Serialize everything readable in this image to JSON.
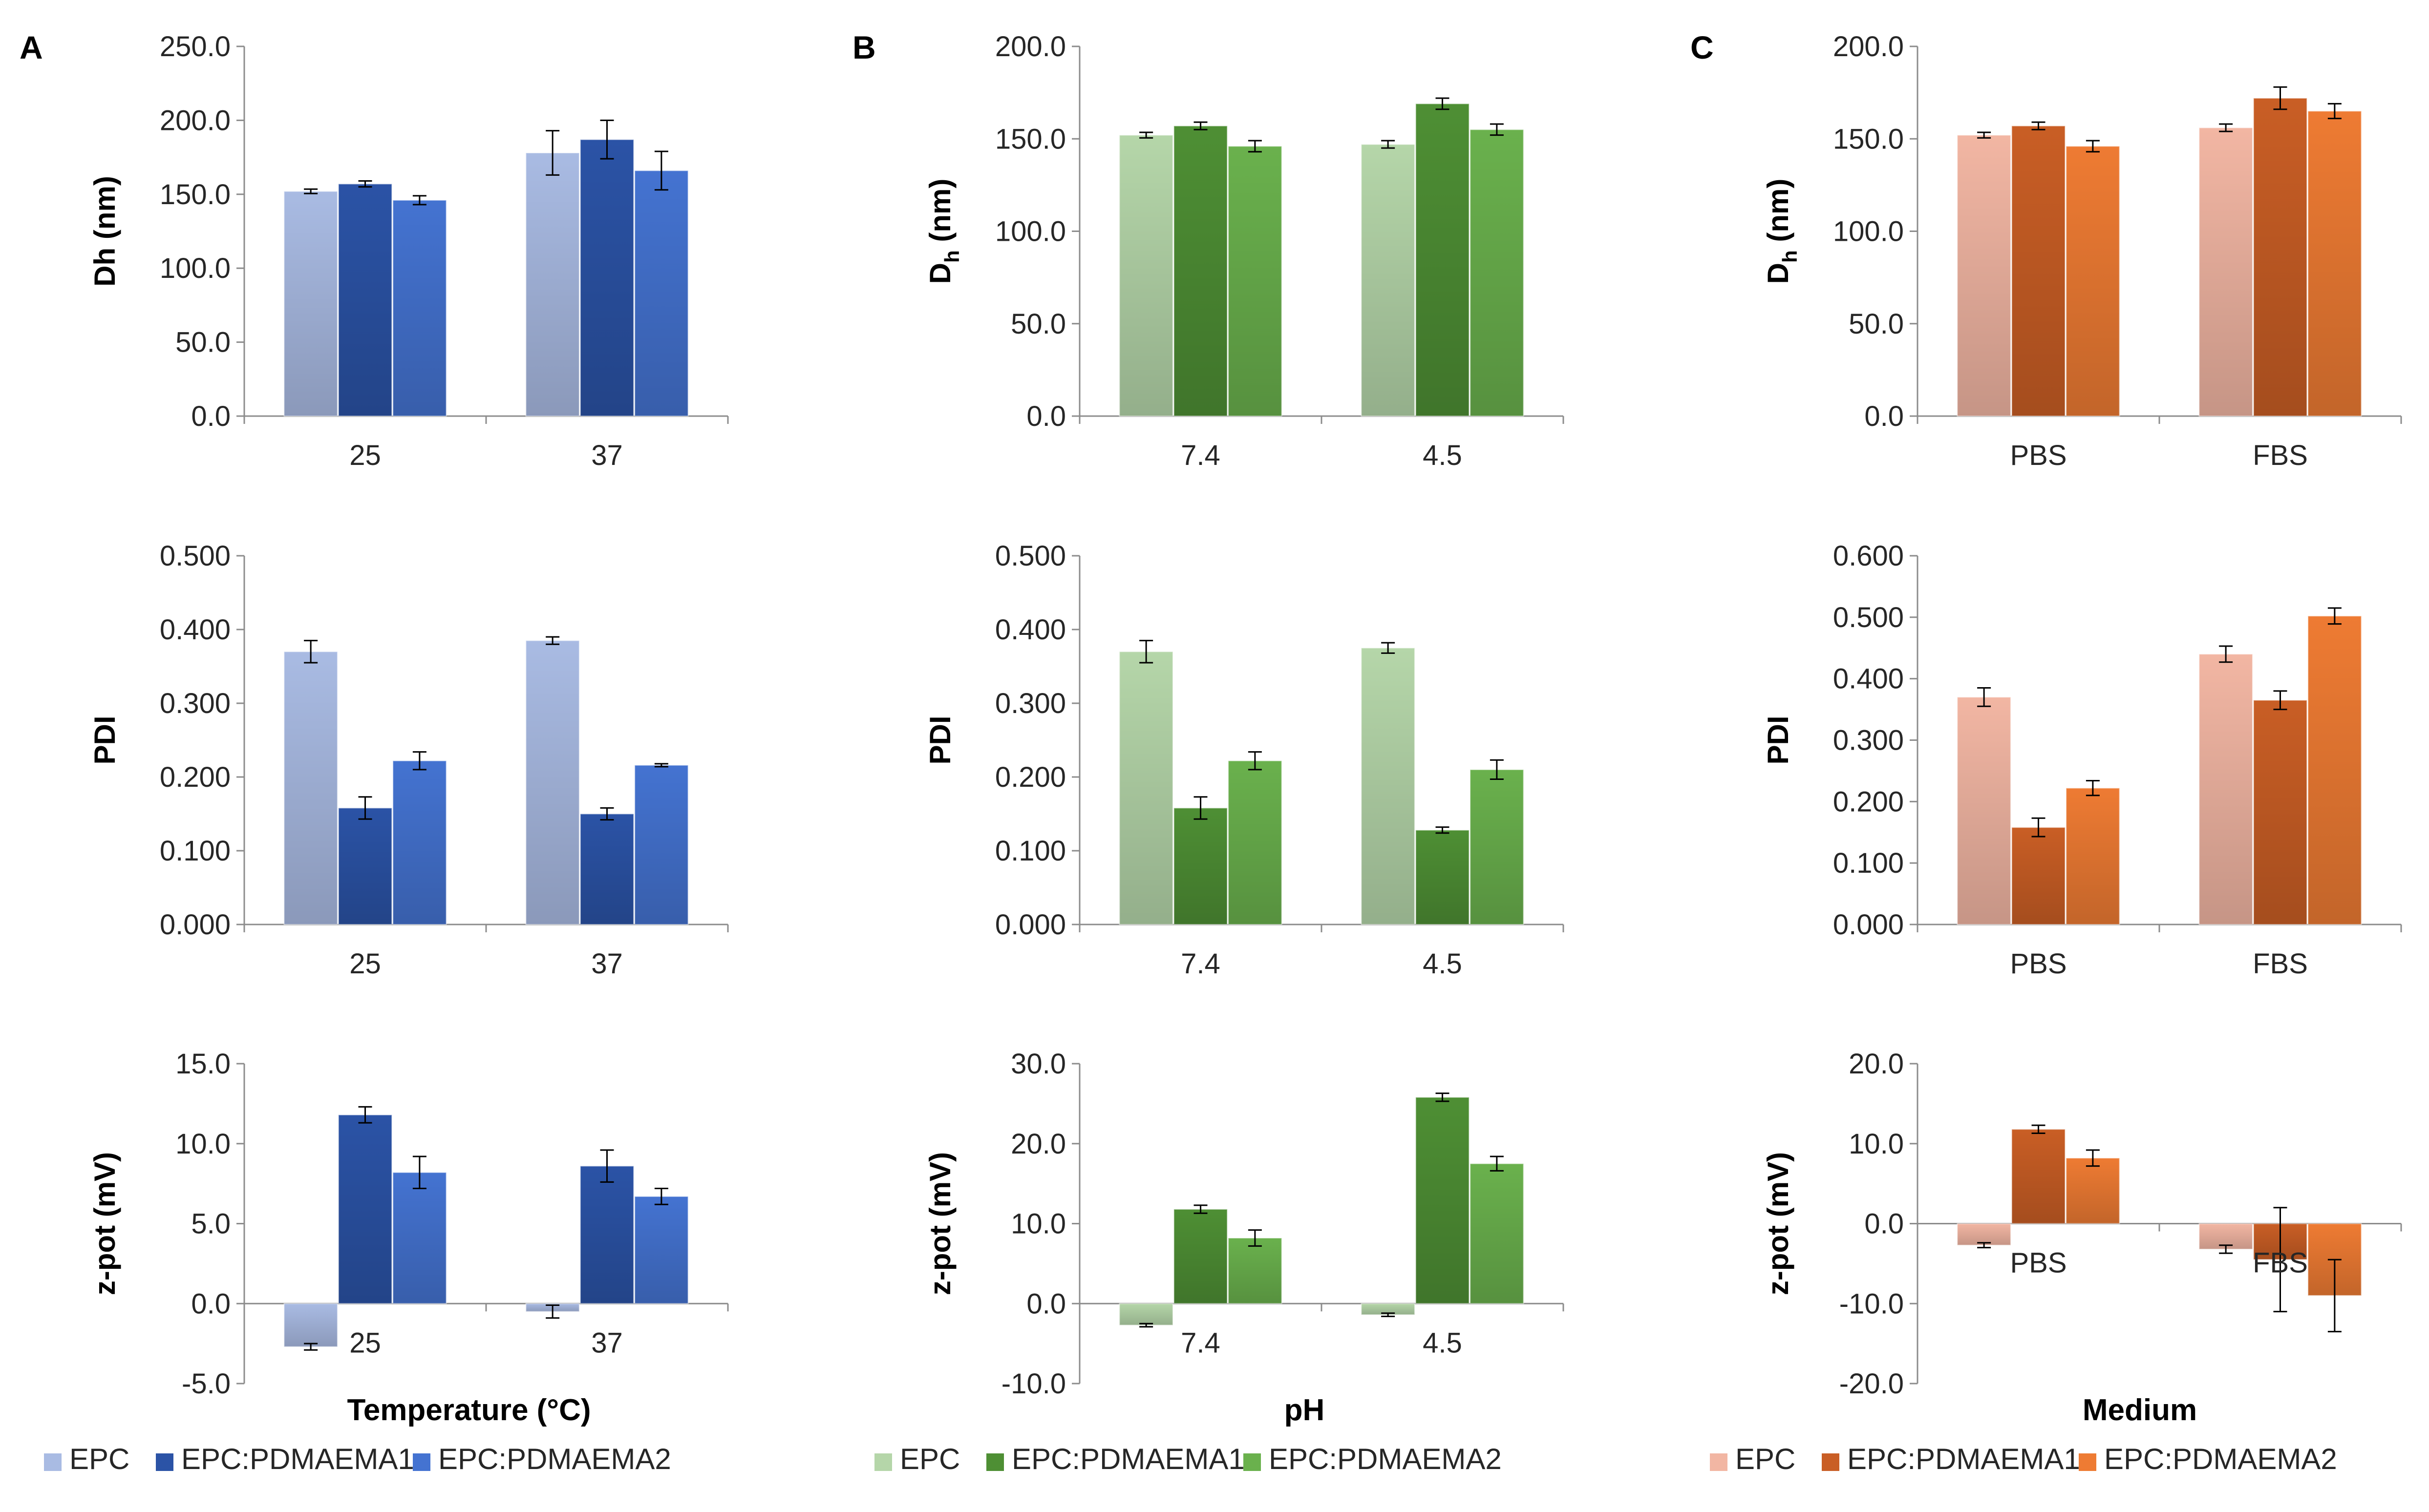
{
  "panel_labels": [
    "A",
    "B",
    "C"
  ],
  "column_titles": [
    "Temperature (°C)",
    "pH",
    "Medium"
  ],
  "legends": [
    {
      "items": [
        "EPC",
        "EPC:PDMAEMA1",
        "EPC:PDMAEMA2"
      ],
      "colors": [
        "#a9bbe3",
        "#2b53a6",
        "#4473d1"
      ]
    },
    {
      "items": [
        "EPC",
        "EPC:PDMAEMA1",
        "EPC:PDMAEMA2"
      ],
      "colors": [
        "#b5d6a9",
        "#4e8f34",
        "#6ab14d"
      ]
    },
    {
      "items": [
        "EPC",
        "EPC:PDMAEMA1",
        "EPC:PDMAEMA2"
      ],
      "colors": [
        "#f2b6a3",
        "#c95e25",
        "#ee7b33"
      ]
    }
  ],
  "chart_data": [
    {
      "id": "A1",
      "type": "bar",
      "col": 0,
      "row": 0,
      "ylabel": "Dh (nm)",
      "ylabel_sub": "",
      "ylim": [
        0,
        250
      ],
      "ticks": [
        "0.0",
        "50.0",
        "100.0",
        "150.0",
        "200.0",
        "250.0"
      ],
      "categories": [
        "25",
        "37"
      ],
      "labels_at_bottom": true,
      "series": [
        {
          "name": "EPC",
          "values": [
            152,
            178
          ],
          "errors": [
            1.5,
            15
          ]
        },
        {
          "name": "EPC:PDMAEMA1",
          "values": [
            157,
            187
          ],
          "errors": [
            2,
            13
          ]
        },
        {
          "name": "EPC:PDMAEMA2",
          "values": [
            146,
            166
          ],
          "errors": [
            3,
            13
          ]
        }
      ]
    },
    {
      "id": "A2",
      "type": "bar",
      "col": 0,
      "row": 1,
      "ylabel": "PDI",
      "ylabel_sub": "",
      "ylim": [
        0,
        0.5
      ],
      "ticks": [
        "0.000",
        "0.100",
        "0.200",
        "0.300",
        "0.400",
        "0.500"
      ],
      "categories": [
        "25",
        "37"
      ],
      "labels_at_bottom": true,
      "series": [
        {
          "name": "EPC",
          "values": [
            0.37,
            0.385
          ],
          "errors": [
            0.015,
            0.005
          ]
        },
        {
          "name": "EPC:PDMAEMA1",
          "values": [
            0.158,
            0.15
          ],
          "errors": [
            0.015,
            0.008
          ]
        },
        {
          "name": "EPC:PDMAEMA2",
          "values": [
            0.222,
            0.216
          ],
          "errors": [
            0.012,
            0.002
          ]
        }
      ]
    },
    {
      "id": "A3",
      "type": "bar",
      "col": 0,
      "row": 2,
      "ylabel": "z-pot (mV)",
      "ylabel_sub": "",
      "ylim": [
        -5,
        15
      ],
      "ticks": [
        "-5.0",
        "0.0",
        "5.0",
        "10.0",
        "15.0"
      ],
      "categories": [
        "25",
        "37"
      ],
      "labels_at_bottom": false,
      "series": [
        {
          "name": "EPC",
          "values": [
            -2.7,
            -0.5
          ],
          "errors": [
            0.2,
            0.4
          ]
        },
        {
          "name": "EPC:PDMAEMA1",
          "values": [
            11.8,
            8.6
          ],
          "errors": [
            0.5,
            1.0
          ]
        },
        {
          "name": "EPC:PDMAEMA2",
          "values": [
            8.2,
            6.7
          ],
          "errors": [
            1.0,
            0.5
          ]
        }
      ]
    },
    {
      "id": "B1",
      "type": "bar",
      "col": 1,
      "row": 0,
      "ylabel": "D",
      "ylabel_sub": "h",
      "ylabel_post": " (nm)",
      "ylim": [
        0,
        200
      ],
      "ticks": [
        "0.0",
        "50.0",
        "100.0",
        "150.0",
        "200.0"
      ],
      "categories": [
        "7.4",
        "4.5"
      ],
      "labels_at_bottom": true,
      "series": [
        {
          "name": "EPC",
          "values": [
            152,
            147
          ],
          "errors": [
            1.5,
            2
          ]
        },
        {
          "name": "EPC:PDMAEMA1",
          "values": [
            157,
            169
          ],
          "errors": [
            2,
            3
          ]
        },
        {
          "name": "EPC:PDMAEMA2",
          "values": [
            146,
            155
          ],
          "errors": [
            3,
            3
          ]
        }
      ]
    },
    {
      "id": "B2",
      "type": "bar",
      "col": 1,
      "row": 1,
      "ylabel": "PDI",
      "ylabel_sub": "",
      "ylim": [
        0,
        0.5
      ],
      "ticks": [
        "0.000",
        "0.100",
        "0.200",
        "0.300",
        "0.400",
        "0.500"
      ],
      "categories": [
        "7.4",
        "4.5"
      ],
      "labels_at_bottom": true,
      "series": [
        {
          "name": "EPC",
          "values": [
            0.37,
            0.375
          ],
          "errors": [
            0.015,
            0.007
          ]
        },
        {
          "name": "EPC:PDMAEMA1",
          "values": [
            0.158,
            0.128
          ],
          "errors": [
            0.015,
            0.004
          ]
        },
        {
          "name": "EPC:PDMAEMA2",
          "values": [
            0.222,
            0.21
          ],
          "errors": [
            0.012,
            0.013
          ]
        }
      ]
    },
    {
      "id": "B3",
      "type": "bar",
      "col": 1,
      "row": 2,
      "ylabel": "z-pot (mV)",
      "ylabel_sub": "",
      "ylim": [
        -10,
        30
      ],
      "ticks": [
        "-10.0",
        "0.0",
        "10.0",
        "20.0",
        "30.0"
      ],
      "categories": [
        "7.4",
        "4.5"
      ],
      "labels_at_bottom": false,
      "series": [
        {
          "name": "EPC",
          "values": [
            -2.7,
            -1.4
          ],
          "errors": [
            0.2,
            0.2
          ]
        },
        {
          "name": "EPC:PDMAEMA1",
          "values": [
            11.8,
            25.8
          ],
          "errors": [
            0.5,
            0.5
          ]
        },
        {
          "name": "EPC:PDMAEMA2",
          "values": [
            8.2,
            17.5
          ],
          "errors": [
            1.0,
            0.9
          ]
        }
      ]
    },
    {
      "id": "C1",
      "type": "bar",
      "col": 2,
      "row": 0,
      "ylabel": "D",
      "ylabel_sub": "h",
      "ylabel_post": " (nm)",
      "ylim": [
        0,
        200
      ],
      "ticks": [
        "0.0",
        "50.0",
        "100.0",
        "150.0",
        "200.0"
      ],
      "categories": [
        "PBS",
        "FBS"
      ],
      "labels_at_bottom": true,
      "series": [
        {
          "name": "EPC",
          "values": [
            152,
            156
          ],
          "errors": [
            1.5,
            2
          ]
        },
        {
          "name": "EPC:PDMAEMA1",
          "values": [
            157,
            172
          ],
          "errors": [
            2,
            6
          ]
        },
        {
          "name": "EPC:PDMAEMA2",
          "values": [
            146,
            165
          ],
          "errors": [
            3,
            4
          ]
        }
      ]
    },
    {
      "id": "C2",
      "type": "bar",
      "col": 2,
      "row": 1,
      "ylabel": "PDI",
      "ylabel_sub": "",
      "ylim": [
        0,
        0.6
      ],
      "ticks": [
        "0.000",
        "0.100",
        "0.200",
        "0.300",
        "0.400",
        "0.500",
        "0.600"
      ],
      "categories": [
        "PBS",
        "FBS"
      ],
      "labels_at_bottom": true,
      "series": [
        {
          "name": "EPC",
          "values": [
            0.37,
            0.44
          ],
          "errors": [
            0.015,
            0.013
          ]
        },
        {
          "name": "EPC:PDMAEMA1",
          "values": [
            0.158,
            0.365
          ],
          "errors": [
            0.015,
            0.015
          ]
        },
        {
          "name": "EPC:PDMAEMA2",
          "values": [
            0.222,
            0.502
          ],
          "errors": [
            0.012,
            0.013
          ]
        }
      ]
    },
    {
      "id": "C3",
      "type": "bar",
      "col": 2,
      "row": 2,
      "ylabel": "z-pot (mV)",
      "ylabel_sub": "",
      "ylim": [
        -20,
        20
      ],
      "ticks": [
        "-20.0",
        "-10.0",
        "0.0",
        "10.0",
        "20.0"
      ],
      "categories": [
        "PBS",
        "FBS"
      ],
      "labels_at_bottom": false,
      "series": [
        {
          "name": "EPC",
          "values": [
            -2.7,
            -3.2
          ],
          "errors": [
            0.3,
            0.5
          ]
        },
        {
          "name": "EPC:PDMAEMA1",
          "values": [
            11.8,
            -4.5
          ],
          "errors": [
            0.5,
            6.5
          ]
        },
        {
          "name": "EPC:PDMAEMA2",
          "values": [
            8.2,
            -9.0
          ],
          "errors": [
            1.0,
            4.5
          ]
        }
      ]
    }
  ]
}
